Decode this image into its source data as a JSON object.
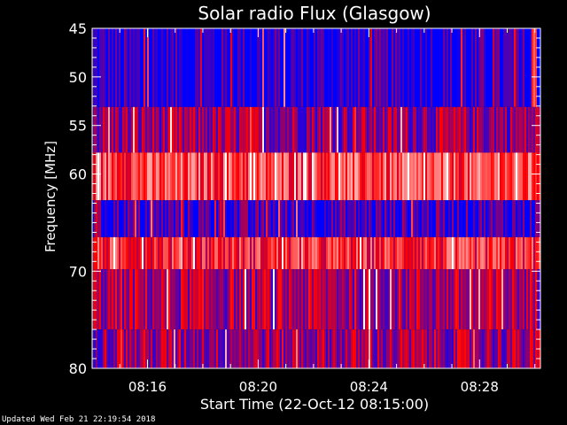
{
  "chart_data": {
    "type": "heatmap",
    "title": "Solar radio Flux (Glasgow)",
    "xlabel": "Start Time (22-Oct-12 08:15:00)",
    "ylabel": "Frequency [MHz]",
    "x_range_minutes": [
      -1.0,
      15.2
    ],
    "ylim": [
      45,
      80
    ],
    "y_inverted": true,
    "x_ticks": [
      {
        "minutes": 1,
        "label": "08:16"
      },
      {
        "minutes": 5,
        "label": "08:20"
      },
      {
        "minutes": 9,
        "label": "08:24"
      },
      {
        "minutes": 13,
        "label": "08:28"
      }
    ],
    "y_ticks": [
      45,
      50,
      55,
      60,
      70,
      80
    ],
    "colormap": [
      "#0000ff",
      "#ff0000",
      "#ffffff"
    ],
    "bands": [
      {
        "f_start": 45.0,
        "f_end": 53.1,
        "level": 0.05
      },
      {
        "f_start": 53.1,
        "f_end": 57.8,
        "level": 0.28
      },
      {
        "f_start": 57.8,
        "f_end": 62.7,
        "level": 0.62
      },
      {
        "f_start": 62.7,
        "f_end": 66.5,
        "level": 0.12
      },
      {
        "f_start": 66.5,
        "f_end": 69.8,
        "level": 0.55
      },
      {
        "f_start": 69.8,
        "f_end": 76.0,
        "level": 0.32
      },
      {
        "f_start": 76.0,
        "f_end": 80.2,
        "level": 0.3
      }
    ]
  },
  "footer": {
    "updated": "Updated Wed Feb 21 22:19:54 2018"
  }
}
